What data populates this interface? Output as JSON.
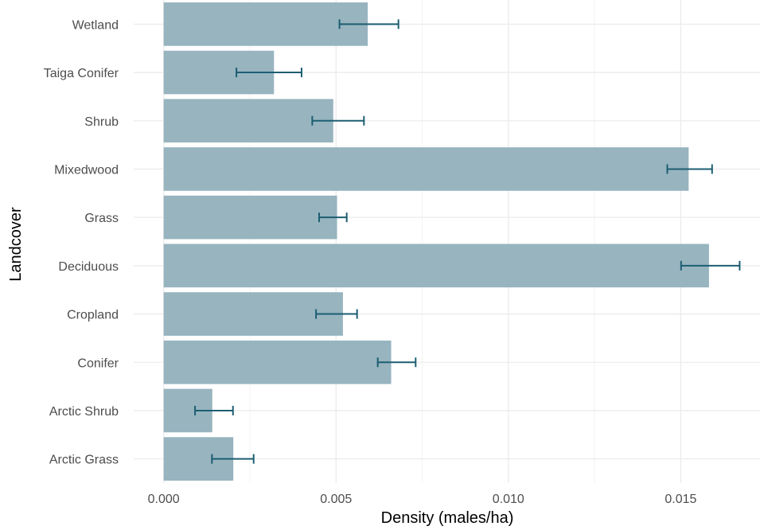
{
  "chart_data": {
    "type": "bar",
    "orientation": "horizontal",
    "title": "",
    "xlabel": "Density (males/ha)",
    "ylabel": "Landcover",
    "categories": [
      "Arctic Grass",
      "Arctic Shrub",
      "Conifer",
      "Cropland",
      "Deciduous",
      "Grass",
      "Mixedwood",
      "Shrub",
      "Taiga Conifer",
      "Wetland"
    ],
    "series": [
      {
        "values": [
          0.00202,
          0.00141,
          0.0066,
          0.0052,
          0.01582,
          0.00503,
          0.01523,
          0.00492,
          0.0032,
          0.00592
        ],
        "error_low": [
          0.0014,
          0.00091,
          0.00621,
          0.00442,
          0.01501,
          0.00451,
          0.01461,
          0.00431,
          0.00211,
          0.0051
        ],
        "error_high": [
          0.00261,
          0.00201,
          0.00731,
          0.00561,
          0.01671,
          0.00531,
          0.01591,
          0.00581,
          0.004,
          0.00681
        ]
      }
    ],
    "xlim": [
      -0.00087,
      0.0173
    ],
    "x_ticks": [
      0.0,
      0.005,
      0.01,
      0.015
    ],
    "x_tick_labels": [
      "0.000",
      "0.005",
      "0.010",
      "0.015"
    ],
    "grid": true,
    "legend": "none",
    "colors": {
      "bar": "#97B4BF",
      "error_bar": "#1D5E72",
      "grid_major": "#EBEBEB",
      "grid_minor": "#F3F3F3"
    }
  }
}
